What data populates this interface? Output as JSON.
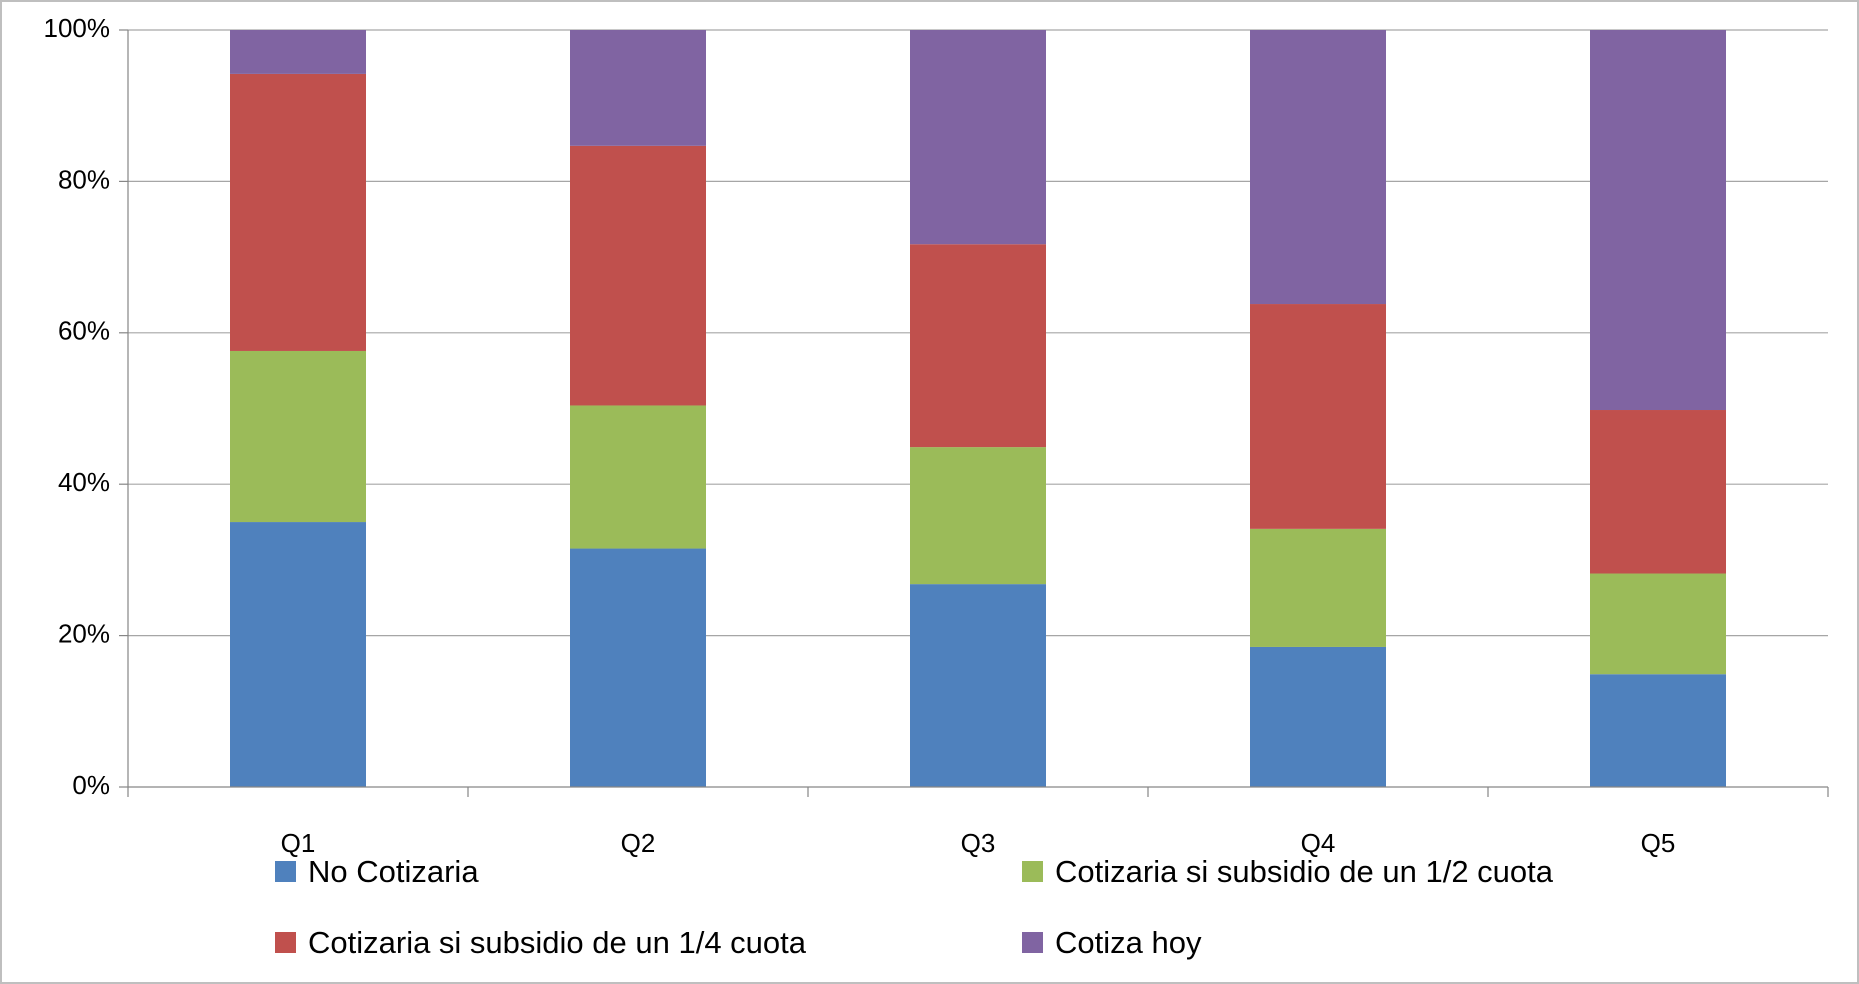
{
  "chart_data": {
    "type": "stacked_bar",
    "categories": [
      "Q1",
      "Q2",
      "Q3",
      "Q4",
      "Q5"
    ],
    "series": [
      {
        "name": "No Cotizaria",
        "color": "#4f81bd",
        "values": [
          35,
          31.5,
          26.8,
          18.5,
          14.9
        ]
      },
      {
        "name": "Cotizaria si subsidio de  un 1/2 cuota",
        "color": "#9bbb59",
        "values": [
          22.6,
          18.9,
          18.1,
          15.6,
          13.3
        ]
      },
      {
        "name": "Cotizaria si  subsidio de un 1/4 cuota",
        "color": "#c0504d",
        "values": [
          36.6,
          34.3,
          26.8,
          29.7,
          21.6
        ]
      },
      {
        "name": "Cotiza hoy",
        "color": "#8064a2",
        "values": [
          5.8,
          15.3,
          28.3,
          36.2,
          50.2
        ]
      }
    ],
    "ylim": [
      0,
      100
    ],
    "yticks": [
      {
        "value": 0,
        "label": "0%"
      },
      {
        "value": 20,
        "label": "20%"
      },
      {
        "value": 40,
        "label": "40%"
      },
      {
        "value": 60,
        "label": "60%"
      },
      {
        "value": 80,
        "label": "80%"
      },
      {
        "value": 100,
        "label": "100%"
      }
    ],
    "grid": true,
    "legend": "bottom"
  }
}
